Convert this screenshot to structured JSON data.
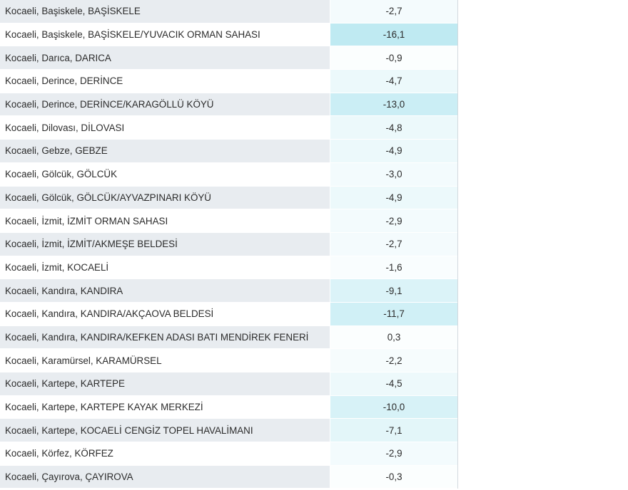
{
  "rows": [
    {
      "name": "Kocaeli, Başiskele, BAŞİSKELE",
      "value": "-2,7",
      "level": 2.7
    },
    {
      "name": "Kocaeli, Başiskele, BAŞİSKELE/YUVACIK ORMAN SAHASI",
      "value": "-16,1",
      "level": 16.1
    },
    {
      "name": "Kocaeli, Darıca, DARICA",
      "value": "-0,9",
      "level": 0.9
    },
    {
      "name": "Kocaeli, Derince, DERİNCE",
      "value": "-4,7",
      "level": 4.7
    },
    {
      "name": "Kocaeli, Derince, DERİNCE/KARAGÖLLÜ KÖYÜ",
      "value": "-13,0",
      "level": 13.0
    },
    {
      "name": "Kocaeli, Dilovası, DİLOVASI",
      "value": "-4,8",
      "level": 4.8
    },
    {
      "name": "Kocaeli, Gebze, GEBZE",
      "value": "-4,9",
      "level": 4.9
    },
    {
      "name": "Kocaeli, Gölcük, GÖLCÜK",
      "value": "-3,0",
      "level": 3.0
    },
    {
      "name": "Kocaeli, Gölcük, GÖLCÜK/AYVAZPINARI KÖYÜ",
      "value": "-4,9",
      "level": 4.9
    },
    {
      "name": "Kocaeli, İzmit, İZMİT ORMAN SAHASI",
      "value": "-2,9",
      "level": 2.9
    },
    {
      "name": "Kocaeli, İzmit, İZMİT/AKMEŞE BELDESİ",
      "value": "-2,7",
      "level": 2.7
    },
    {
      "name": "Kocaeli, İzmit, KOCAELİ",
      "value": "-1,6",
      "level": 1.6
    },
    {
      "name": "Kocaeli, Kandıra, KANDIRA",
      "value": "-9,1",
      "level": 9.1
    },
    {
      "name": "Kocaeli, Kandıra, KANDIRA/AKÇAOVA BELDESİ",
      "value": "-11,7",
      "level": 11.7
    },
    {
      "name": "Kocaeli, Kandıra, KANDIRA/KEFKEN ADASI BATI MENDİREK FENERİ",
      "value": "0,3",
      "level": 0.0
    },
    {
      "name": "Kocaeli, Karamürsel, KARAMÜRSEL",
      "value": "-2,2",
      "level": 2.2
    },
    {
      "name": "Kocaeli, Kartepe, KARTEPE",
      "value": "-4,5",
      "level": 4.5
    },
    {
      "name": "Kocaeli, Kartepe, KARTEPE KAYAK MERKEZİ",
      "value": "-10,0",
      "level": 10.0
    },
    {
      "name": "Kocaeli, Kartepe, KOCAELİ CENGİZ TOPEL HAVALİMANI",
      "value": "-7,1",
      "level": 7.1
    },
    {
      "name": "Kocaeli, Körfez, KÖRFEZ",
      "value": "-2,9",
      "level": 2.9
    },
    {
      "name": "Kocaeli, Çayırova, ÇAYIROVA",
      "value": "-0,3",
      "level": 0.3
    }
  ],
  "colors": {
    "cold_max": "#bfeaf2",
    "neutral": "#ffffff"
  }
}
